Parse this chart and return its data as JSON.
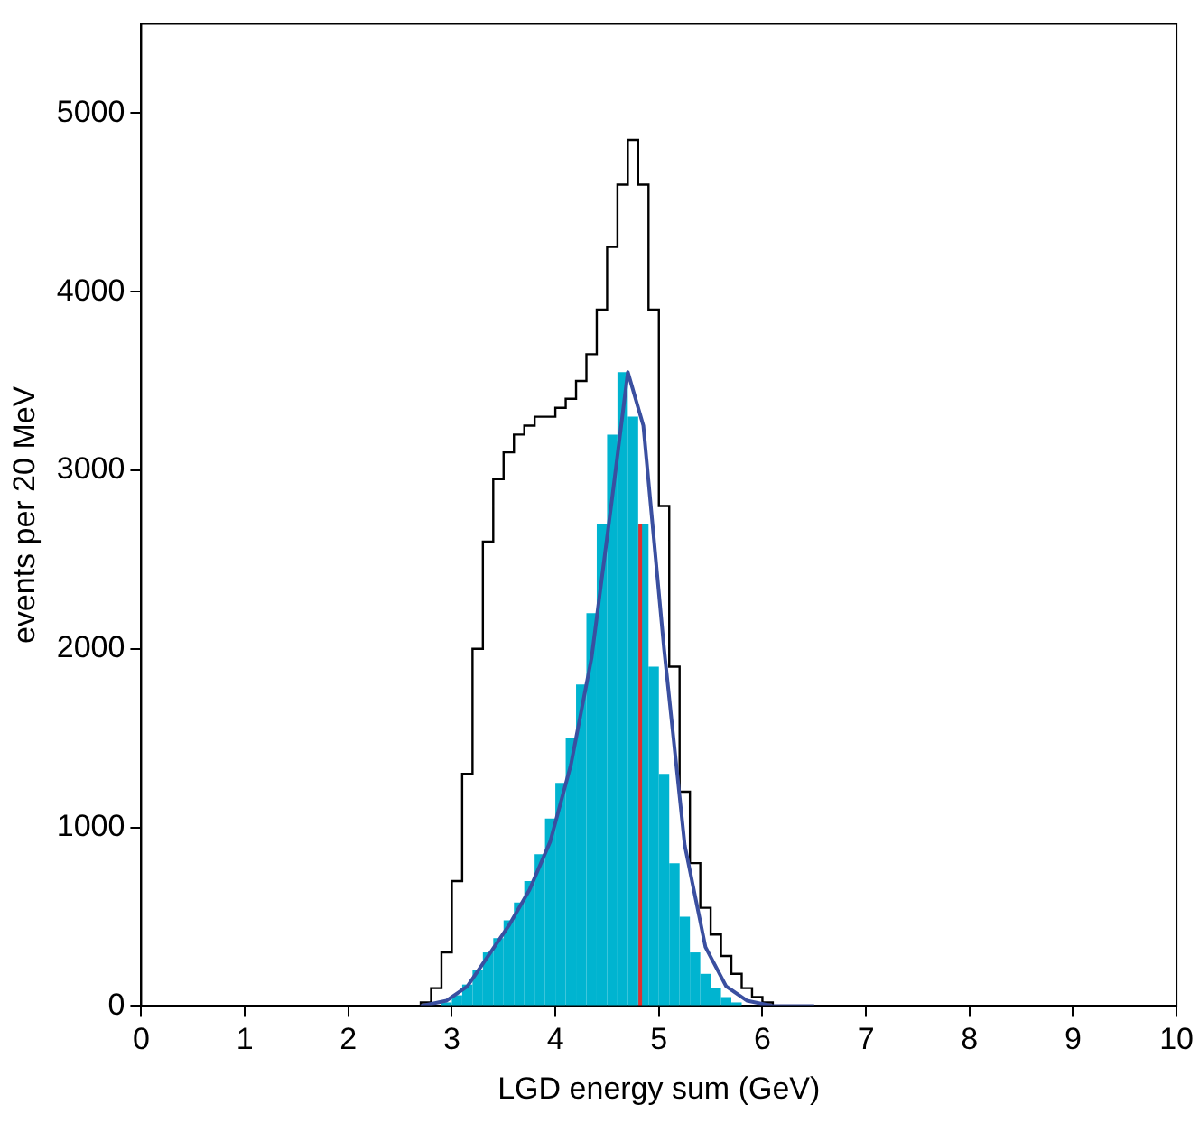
{
  "chart_data": {
    "type": "histogram",
    "xlabel": "LGD energy sum (GeV)",
    "ylabel": "events per 20 MeV",
    "xlim": [
      0,
      10
    ],
    "xticks": [
      0,
      1,
      2,
      3,
      4,
      5,
      6,
      7,
      8,
      9,
      10
    ],
    "ylim": [
      0,
      5500
    ],
    "yticks": [
      0,
      1000,
      2000,
      3000,
      4000,
      5000
    ],
    "grid": false,
    "legend": false,
    "bins": [
      2.9,
      3.0,
      3.1,
      3.2,
      3.3,
      3.4,
      3.5,
      3.6,
      3.7,
      3.8,
      3.9,
      4.0,
      4.1,
      4.2,
      4.3,
      4.4,
      4.5,
      4.6,
      4.7,
      4.8,
      4.9,
      5.0,
      5.1,
      5.2,
      5.3,
      5.4,
      5.5,
      5.6,
      5.7,
      5.8,
      5.9,
      6.0
    ],
    "series": [
      {
        "type": "step",
        "color": "#000000",
        "x": [
          2.65,
          2.75,
          2.85,
          2.95,
          3.05,
          3.15,
          3.25,
          3.35,
          3.45,
          3.55,
          3.65,
          3.75,
          3.85,
          3.95,
          4.05,
          4.15,
          4.25,
          4.35,
          4.45,
          4.55,
          4.65,
          4.75,
          4.85,
          4.95,
          5.05,
          5.15,
          5.25,
          5.35,
          5.45,
          5.55,
          5.65,
          5.75,
          5.85,
          5.95,
          6.05,
          6.15
        ],
        "values": [
          0,
          20,
          100,
          300,
          700,
          1300,
          2000,
          2600,
          2950,
          3100,
          3200,
          3250,
          3300,
          3300,
          3350,
          3400,
          3500,
          3650,
          3900,
          4250,
          4600,
          4850,
          4600,
          3900,
          2800,
          1900,
          1200,
          800,
          550,
          400,
          280,
          180,
          100,
          50,
          20,
          0
        ]
      },
      {
        "color": "#00b4d0",
        "values": [
          20,
          60,
          120,
          200,
          300,
          380,
          480,
          580,
          700,
          850,
          1050,
          1250,
          1500,
          1800,
          2200,
          2700,
          3200,
          3550,
          3300,
          2700,
          1900,
          1300,
          800,
          500,
          300,
          180,
          100,
          50,
          20,
          0,
          0
        ]
      },
      {
        "type": "line",
        "color": "#3a4fa0",
        "x": [
          2.7,
          2.95,
          3.15,
          3.35,
          3.55,
          3.75,
          3.95,
          4.15,
          4.35,
          4.55,
          4.7,
          4.85,
          5.05,
          5.25,
          5.45,
          5.65,
          5.85,
          6.1,
          6.5
        ],
        "values": [
          0,
          30,
          110,
          280,
          450,
          650,
          920,
          1350,
          1950,
          2850,
          3550,
          3250,
          2000,
          900,
          330,
          110,
          30,
          0,
          0
        ]
      }
    ],
    "ref_lines": [
      {
        "axis": "x",
        "value": 4.82,
        "color": "#e03030"
      }
    ]
  }
}
